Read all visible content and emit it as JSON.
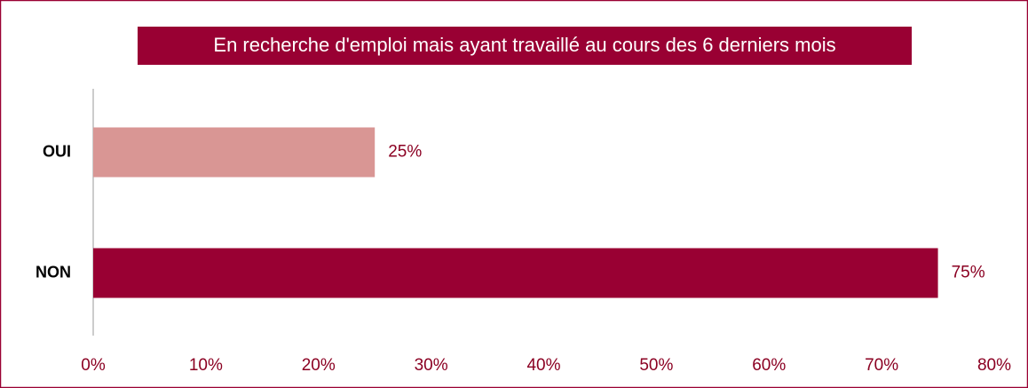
{
  "chart_data": {
    "type": "barh",
    "title": "En recherche d'emploi mais ayant travaillé au cours des 6 derniers mois",
    "categories": [
      "OUI",
      "NON"
    ],
    "values": [
      25,
      75
    ],
    "value_labels": [
      "25%",
      "75%"
    ],
    "colors": [
      "#d99694",
      "#990033"
    ],
    "xlim": [
      0,
      80
    ],
    "xticks": [
      {
        "value": 0,
        "label": "0%"
      },
      {
        "value": 10,
        "label": "10%"
      },
      {
        "value": 20,
        "label": "20%"
      },
      {
        "value": 30,
        "label": "30%"
      },
      {
        "value": 40,
        "label": "40%"
      },
      {
        "value": 50,
        "label": "50%"
      },
      {
        "value": 60,
        "label": "60%"
      },
      {
        "value": 70,
        "label": "70%"
      },
      {
        "value": 80,
        "label": "80%"
      }
    ],
    "grid": false
  }
}
